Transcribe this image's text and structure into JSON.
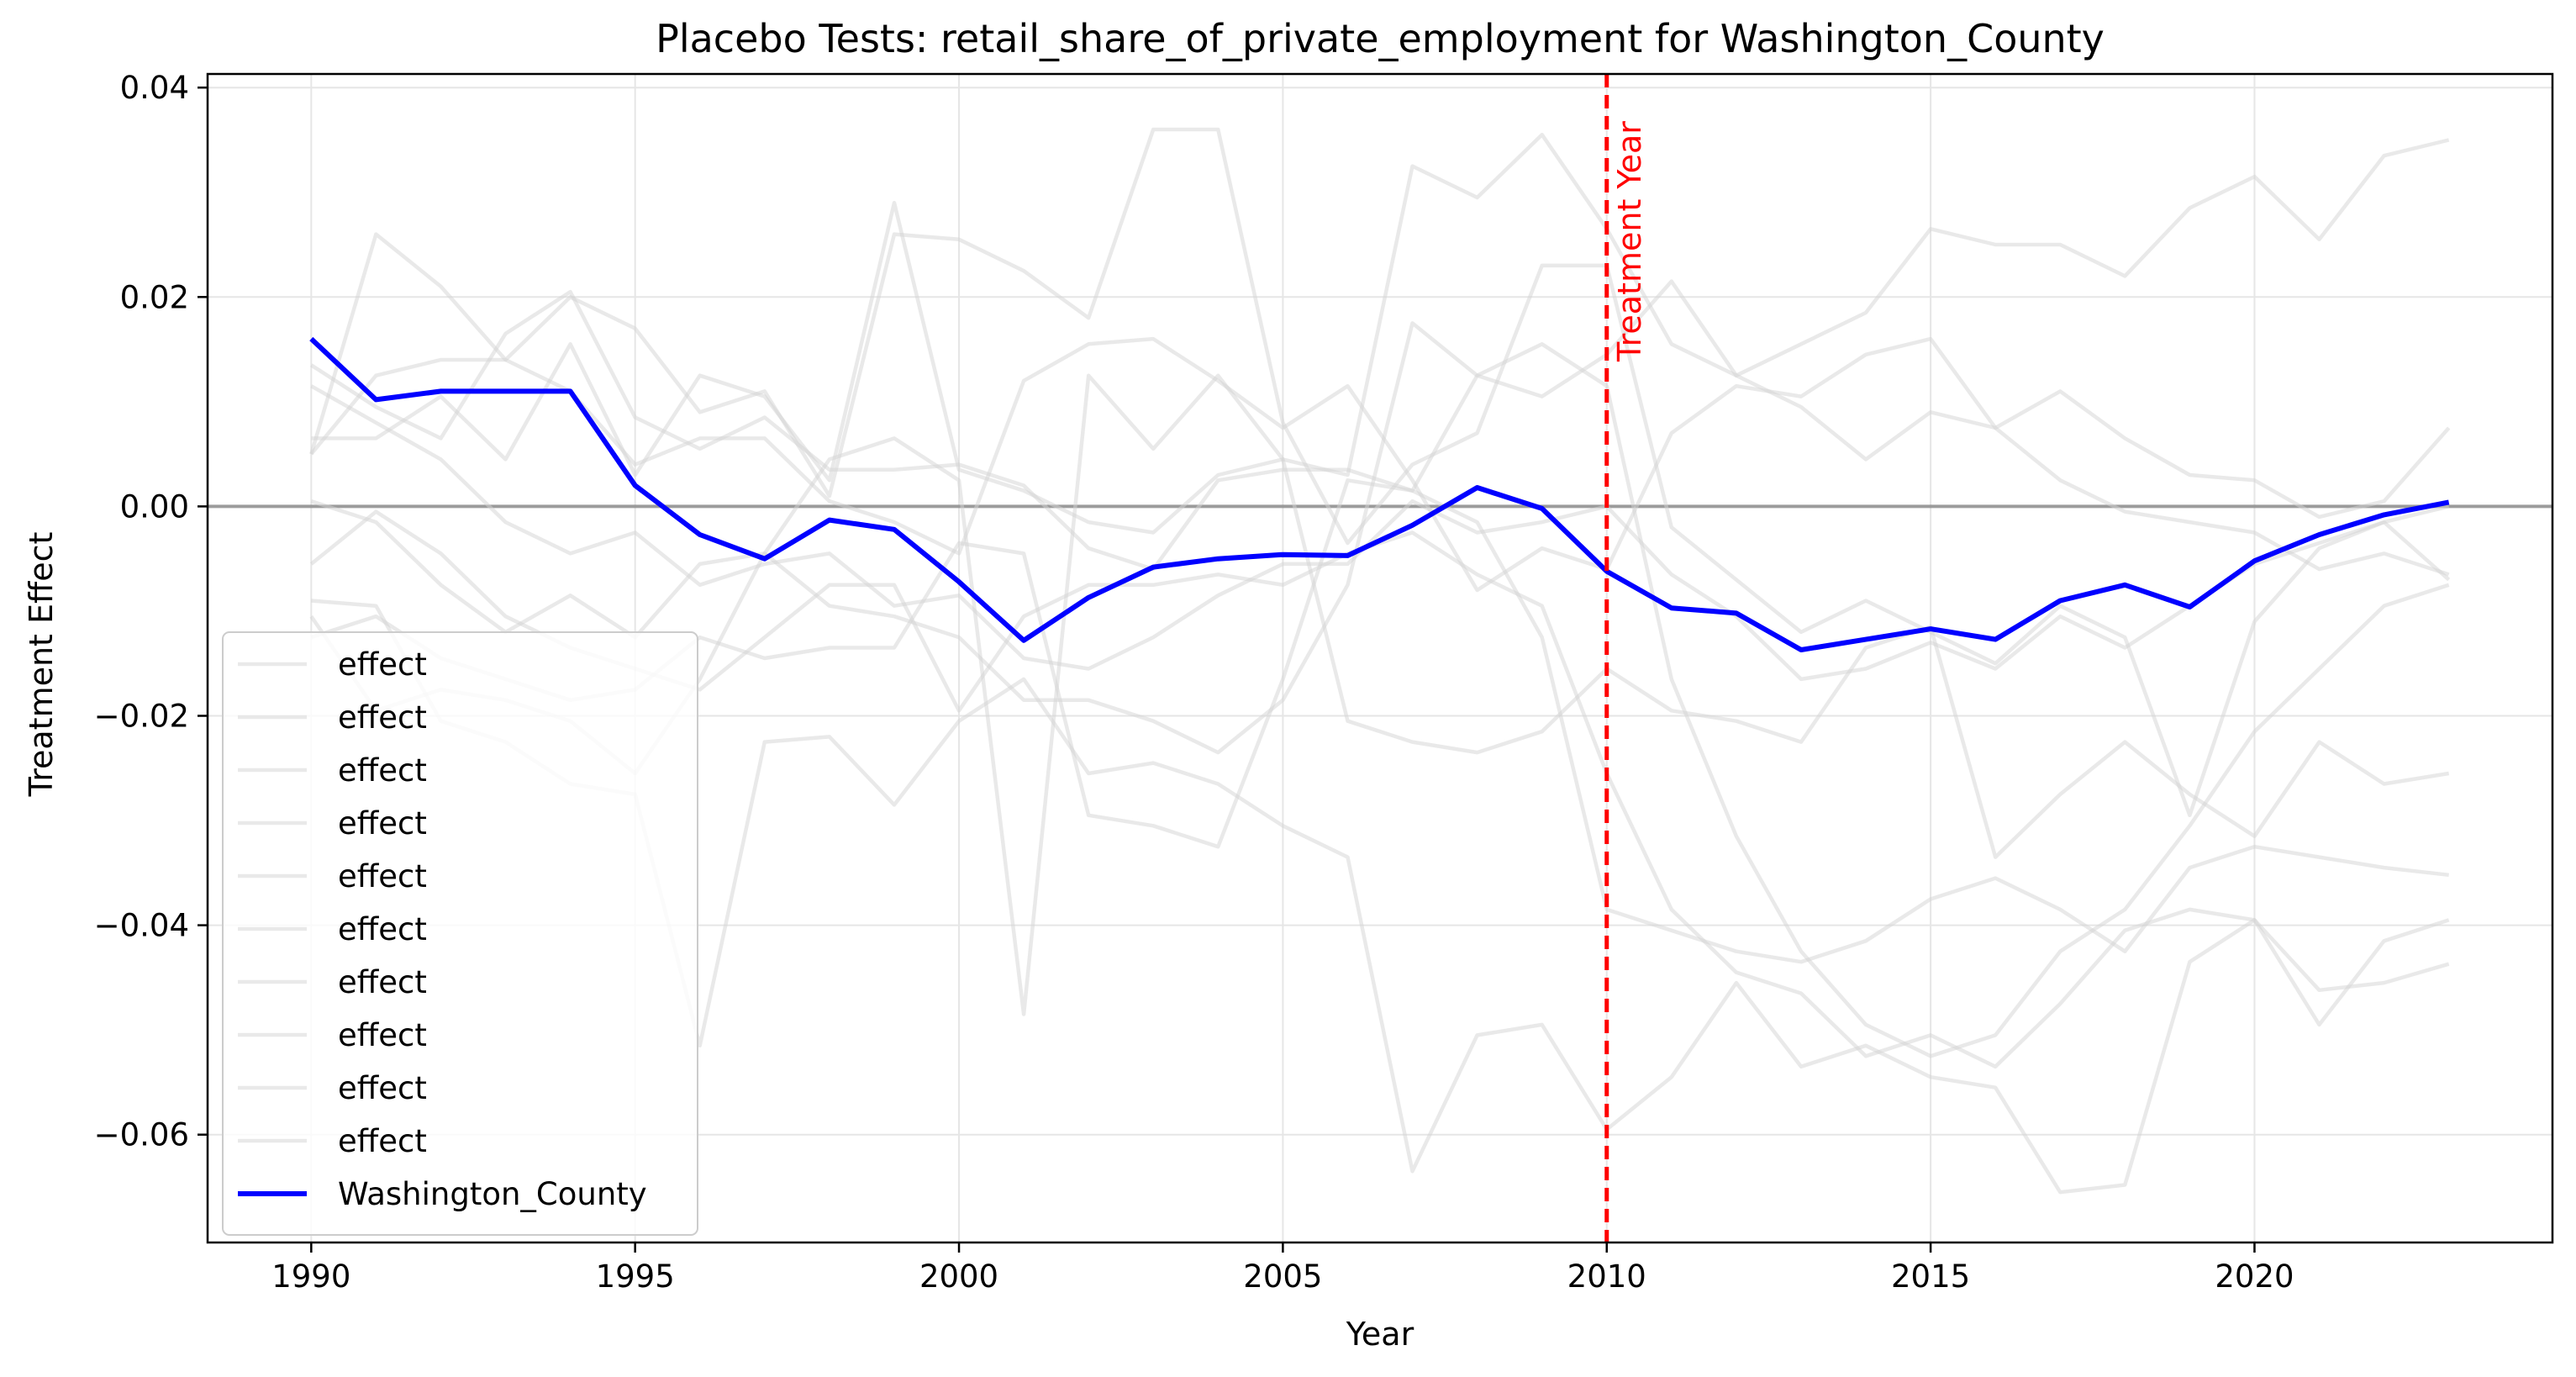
{
  "chart_data": {
    "type": "line",
    "title": "Placebo Tests: retail_share_of_private_employment for Washington_County",
    "xlabel": "Year",
    "ylabel": "Treatment Effect",
    "xlim": [
      1988.4,
      2024.6
    ],
    "ylim": [
      -0.0703,
      0.0413
    ],
    "xticks": [
      1990,
      1995,
      2000,
      2005,
      2010,
      2015,
      2020
    ],
    "xtick_labels": [
      "1990",
      "1995",
      "2000",
      "2005",
      "2010",
      "2015",
      "2020"
    ],
    "yticks": [
      -0.06,
      -0.04,
      -0.02,
      0.0,
      0.02,
      0.04
    ],
    "ytick_labels": [
      "−0.06",
      "−0.04",
      "−0.02",
      "0.00",
      "0.02",
      "0.04"
    ],
    "grid": true,
    "legend_position": "lower-left",
    "zero_line": 0,
    "treatment_year": 2010,
    "treatment_label": "Treatment Year",
    "colors": {
      "placebo": "#d3d3d3",
      "treated": "#0000ff",
      "treatment_line": "#ff0000",
      "zero_line": "#808080",
      "grid": "#e6e6e6"
    },
    "x": [
      1990,
      1991,
      1992,
      1993,
      1994,
      1995,
      1996,
      1997,
      1998,
      1999,
      2000,
      2001,
      2002,
      2003,
      2004,
      2005,
      2006,
      2007,
      2008,
      2009,
      2010,
      2011,
      2012,
      2013,
      2014,
      2015,
      2016,
      2017,
      2018,
      2019,
      2020,
      2021,
      2022,
      2023
    ],
    "series": [
      {
        "name": "effect",
        "values": [
          0.005,
          0.026,
          0.021,
          0.014,
          0.02,
          0.017,
          0.009,
          0.011,
          0.001,
          0.026,
          0.0255,
          0.0225,
          0.018,
          0.036,
          0.036,
          0.008,
          -0.0035,
          0.004,
          0.007,
          0.023,
          0.023,
          -0.002,
          -0.007,
          -0.012,
          -0.009,
          -0.012,
          -0.015,
          -0.0095,
          -0.0125,
          -0.0295,
          -0.011,
          -0.004,
          -0.0015,
          -0.007
        ]
      },
      {
        "name": "effect",
        "values": [
          0.0065,
          0.0065,
          0.0105,
          0.0045,
          0.0155,
          0.003,
          0.0125,
          0.0105,
          0.0025,
          0.029,
          0.0035,
          0.0015,
          -0.0015,
          -0.0025,
          0.003,
          0.0045,
          0.003,
          0.0325,
          0.0295,
          0.0355,
          0.0265,
          0.0155,
          0.0125,
          0.0155,
          0.0185,
          0.0265,
          0.025,
          0.025,
          0.022,
          0.0285,
          0.0315,
          0.0255,
          0.0335,
          0.035
        ]
      },
      {
        "name": "effect",
        "values": [
          0.0135,
          0.0095,
          0.0065,
          0.0165,
          0.0205,
          0.0085,
          0.0055,
          0.0085,
          0.0035,
          0.0035,
          0.004,
          0.002,
          -0.004,
          -0.006,
          0.0025,
          0.0035,
          0.0035,
          0.0015,
          0.0125,
          0.0105,
          0.0145,
          0.0215,
          0.0125,
          0.0095,
          0.0045,
          0.009,
          0.0075,
          0.011,
          0.0065,
          0.003,
          0.0025,
          -0.001,
          0.0005,
          0.0075
        ]
      },
      {
        "name": "effect",
        "values": [
          0.005,
          0.0125,
          0.014,
          0.014,
          0.011,
          0.004,
          0.0065,
          0.0065,
          0.0005,
          -0.0015,
          -0.0045,
          0.012,
          0.0155,
          0.016,
          0.012,
          0.0075,
          0.0115,
          0.0025,
          -0.008,
          -0.004,
          -0.006,
          0.007,
          0.0115,
          0.0105,
          0.0145,
          0.016,
          0.0075,
          0.0025,
          -0.0005,
          -0.0015,
          -0.0025,
          -0.006,
          -0.0045,
          -0.0065
        ]
      },
      {
        "name": "effect",
        "values": [
          0.0115,
          0.008,
          0.0045,
          -0.0015,
          -0.0045,
          -0.0025,
          -0.0075,
          -0.0055,
          -0.0045,
          -0.0095,
          -0.0085,
          -0.0145,
          -0.0155,
          -0.0125,
          -0.0085,
          -0.0055,
          -0.0055,
          0.0005,
          -0.0025,
          -0.0015,
          0.0,
          -0.0065,
          -0.0105,
          -0.0165,
          -0.0155,
          -0.013,
          -0.0155,
          -0.0105,
          -0.0135,
          -0.0095,
          -0.0055,
          -0.0035,
          -0.0015,
          0.0
        ]
      },
      {
        "name": "effect",
        "values": [
          0.0005,
          -0.0015,
          -0.0075,
          -0.012,
          -0.0085,
          -0.0125,
          -0.0055,
          -0.0045,
          -0.0095,
          -0.0105,
          -0.0125,
          -0.0185,
          -0.0185,
          -0.0205,
          -0.0235,
          -0.0185,
          -0.0075,
          0.0175,
          0.0125,
          0.0155,
          0.0115,
          -0.0165,
          -0.0315,
          -0.0425,
          -0.0495,
          -0.0525,
          -0.0505,
          -0.0425,
          -0.0385,
          -0.0305,
          -0.0215,
          -0.0155,
          -0.0095,
          -0.0075
        ]
      },
      {
        "name": "effect",
        "values": [
          -0.0055,
          -0.0005,
          -0.0045,
          -0.0105,
          -0.0135,
          -0.0155,
          -0.0175,
          -0.0125,
          -0.0075,
          -0.0075,
          -0.0195,
          -0.0105,
          -0.0075,
          -0.0075,
          -0.0065,
          -0.0075,
          -0.0045,
          -0.0025,
          -0.0065,
          -0.0095,
          -0.0255,
          -0.0385,
          -0.0445,
          -0.0465,
          -0.0525,
          -0.0505,
          -0.0535,
          -0.0475,
          -0.0405,
          -0.0385,
          -0.0395,
          -0.0462,
          -0.0455,
          -0.0437
        ]
      },
      {
        "name": "effect",
        "values": [
          -0.009,
          -0.0095,
          -0.0205,
          -0.0225,
          -0.0265,
          -0.0275,
          -0.0515,
          -0.0225,
          -0.022,
          -0.0285,
          -0.0205,
          -0.0165,
          -0.0255,
          -0.0245,
          -0.0265,
          -0.0305,
          -0.0335,
          -0.0635,
          -0.0505,
          -0.0495,
          -0.0595,
          -0.0545,
          -0.0455,
          -0.0535,
          -0.0515,
          -0.0545,
          -0.0555,
          -0.0655,
          -0.0648,
          -0.0435,
          -0.0395,
          -0.0495,
          -0.0415,
          -0.0395
        ]
      },
      {
        "name": "effect",
        "values": [
          -0.0125,
          -0.0105,
          -0.0145,
          -0.0165,
          -0.0185,
          -0.0175,
          -0.0125,
          -0.0145,
          -0.0135,
          -0.0135,
          -0.0035,
          -0.0045,
          -0.0295,
          -0.0305,
          -0.0325,
          -0.0165,
          0.0025,
          0.0015,
          -0.0015,
          -0.0125,
          -0.0385,
          -0.0405,
          -0.0425,
          -0.0435,
          -0.0415,
          -0.0375,
          -0.0355,
          -0.0385,
          -0.0425,
          -0.0345,
          -0.0325,
          -0.0335,
          -0.0345,
          -0.0352
        ]
      },
      {
        "name": "effect",
        "values": [
          -0.0105,
          -0.0195,
          -0.0175,
          -0.0185,
          -0.0205,
          -0.0255,
          -0.0165,
          -0.0045,
          0.0045,
          0.0065,
          0.0025,
          -0.0485,
          0.0125,
          0.0055,
          0.0125,
          0.0045,
          -0.0205,
          -0.0225,
          -0.0235,
          -0.0215,
          -0.0155,
          -0.0195,
          -0.0205,
          -0.0225,
          -0.0135,
          -0.0115,
          -0.0335,
          -0.0275,
          -0.0225,
          -0.0275,
          -0.0315,
          -0.0225,
          -0.0265,
          -0.0255
        ]
      },
      {
        "name": "Washington_County",
        "treated": true,
        "values": [
          0.016,
          0.0102,
          0.011,
          0.011,
          0.011,
          0.002,
          -0.0027,
          -0.005,
          -0.0013,
          -0.0022,
          -0.0072,
          -0.0128,
          -0.0087,
          -0.0058,
          -0.005,
          -0.0046,
          -0.0047,
          -0.0018,
          0.0018,
          -0.0002,
          -0.0062,
          -0.0097,
          -0.0102,
          -0.0137,
          -0.0127,
          -0.0117,
          -0.0127,
          -0.009,
          -0.0075,
          -0.0096,
          -0.0052,
          -0.0027,
          -0.0008,
          0.0004
        ]
      }
    ]
  }
}
